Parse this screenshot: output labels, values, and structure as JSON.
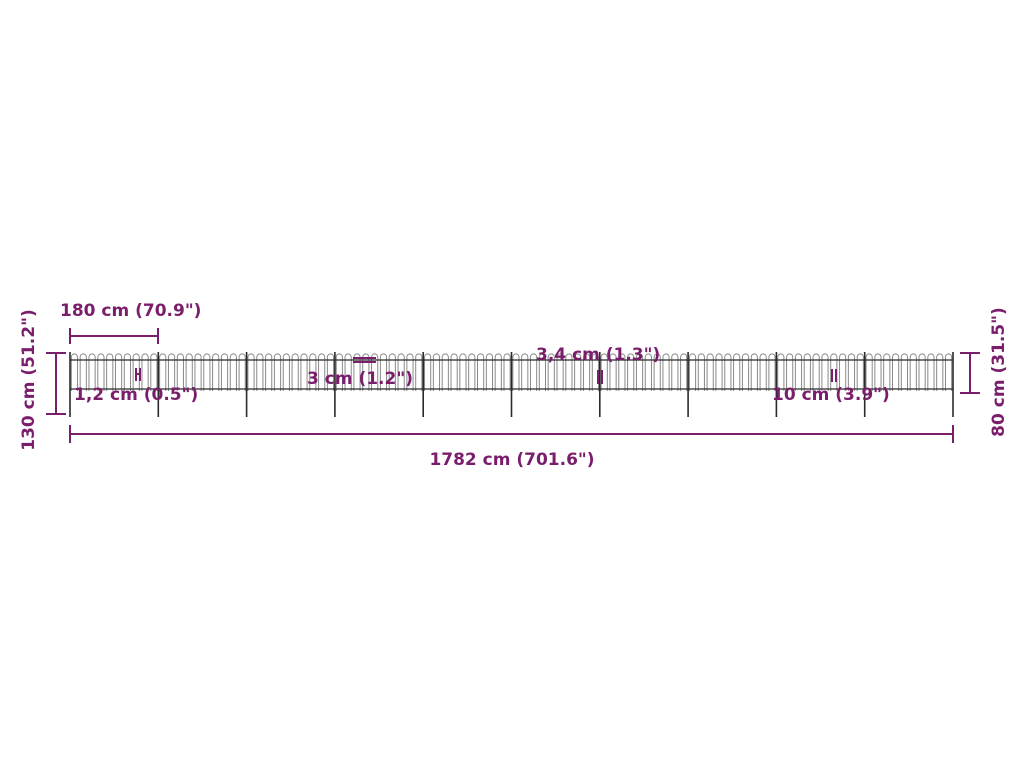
{
  "colors": {
    "dimension": "#7a1e6c",
    "fence": "#2a2a2a",
    "picket": "#8a8a8a"
  },
  "panel_count": 10,
  "labels": {
    "panel_width": "180 cm (70.9\")",
    "total_height": "130 cm (51.2\")",
    "fence_height": "80 cm (31.5\")",
    "total_length": "1782 cm (701.6\")",
    "picket_diameter": "1,2 cm (0.5\")",
    "rail_spacing": "3 cm (1.2\")",
    "post_diameter": "3,4 cm (1.3\")",
    "picket_gap": "10 cm (3.9\")"
  }
}
